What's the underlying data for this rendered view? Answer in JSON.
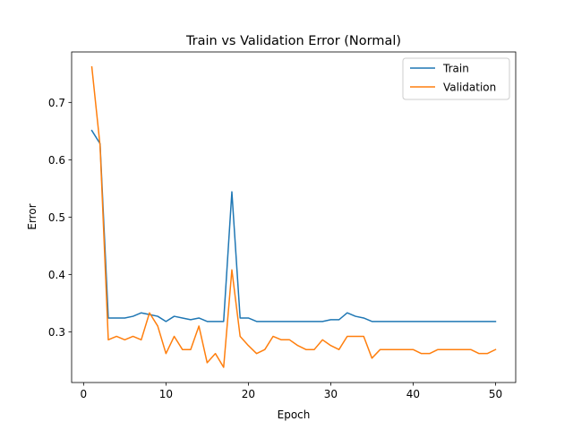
{
  "chart_data": {
    "type": "line",
    "title": "Train vs Validation Error (Normal)",
    "xlabel": "Epoch",
    "ylabel": "Error",
    "xlim": [
      -1.45,
      52.45
    ],
    "ylim": [
      0.2115,
      0.788
    ],
    "xticks": [
      0,
      10,
      20,
      30,
      40,
      50
    ],
    "yticks": [
      0.3,
      0.4,
      0.5,
      0.6,
      0.7
    ],
    "ytick_labels": [
      "0.3",
      "0.4",
      "0.5",
      "0.6",
      "0.7"
    ],
    "grid": false,
    "legend_position": "top-right",
    "x": [
      1,
      2,
      3,
      4,
      5,
      6,
      7,
      8,
      9,
      10,
      11,
      12,
      13,
      14,
      15,
      16,
      17,
      18,
      19,
      20,
      21,
      22,
      23,
      24,
      25,
      26,
      27,
      28,
      29,
      30,
      31,
      32,
      33,
      34,
      35,
      36,
      37,
      38,
      39,
      40,
      41,
      42,
      43,
      44,
      45,
      46,
      47,
      48,
      49,
      50
    ],
    "series": [
      {
        "name": "Train",
        "color": "#1f77b4",
        "values": [
          0.651,
          0.628,
          0.324,
          0.324,
          0.324,
          0.327,
          0.333,
          0.33,
          0.327,
          0.318,
          0.327,
          0.324,
          0.321,
          0.324,
          0.318,
          0.318,
          0.318,
          0.544,
          0.324,
          0.324,
          0.318,
          0.318,
          0.318,
          0.318,
          0.318,
          0.318,
          0.318,
          0.318,
          0.318,
          0.321,
          0.321,
          0.333,
          0.327,
          0.324,
          0.318,
          0.318,
          0.318,
          0.318,
          0.318,
          0.318,
          0.318,
          0.318,
          0.318,
          0.318,
          0.318,
          0.318,
          0.318,
          0.318,
          0.318,
          0.318
        ]
      },
      {
        "name": "Validation",
        "color": "#ff7f0e",
        "values": [
          0.762,
          0.625,
          0.286,
          0.292,
          0.286,
          0.292,
          0.286,
          0.333,
          0.31,
          0.262,
          0.292,
          0.269,
          0.269,
          0.31,
          0.246,
          0.262,
          0.238,
          0.408,
          0.292,
          0.276,
          0.262,
          0.269,
          0.292,
          0.286,
          0.286,
          0.276,
          0.269,
          0.269,
          0.286,
          0.276,
          0.269,
          0.292,
          0.292,
          0.292,
          0.254,
          0.269,
          0.269,
          0.269,
          0.269,
          0.269,
          0.262,
          0.262,
          0.269,
          0.269,
          0.269,
          0.269,
          0.269,
          0.262,
          0.262,
          0.269
        ]
      }
    ]
  }
}
